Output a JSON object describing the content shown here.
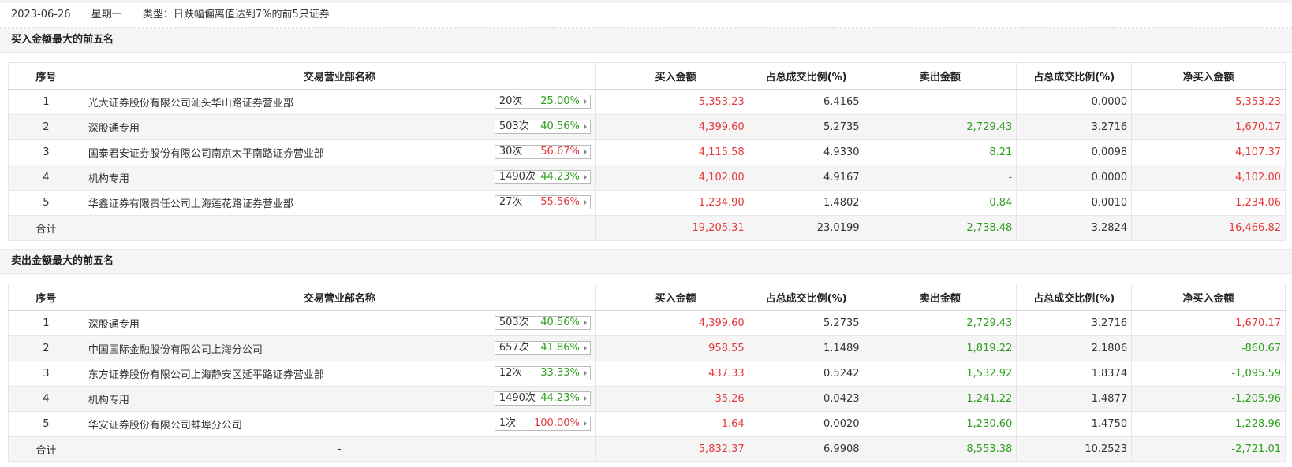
{
  "header": {
    "date": "2023-06-26",
    "weekday": "星期一",
    "type_text": "类型：日跌幅偏离值达到7%的前5只证券"
  },
  "colors": {
    "red": "#e4393c",
    "green": "#2f9e1f"
  },
  "columns": [
    "序号",
    "交易营业部名称",
    "买入金额",
    "占总成交比例(%)",
    "卖出金额",
    "占总成交比例(%)",
    "净买入金额"
  ],
  "buy_section": {
    "title": "买入金额最大的前五名",
    "rows": [
      {
        "idx": "1",
        "name": "光大证券股份有限公司汕头华山路证券营业部",
        "count": "20次",
        "pct": "25.00%",
        "pct_color": "green",
        "buy": "5,353.23",
        "buy_ratio": "6.4165",
        "sell": "-",
        "sell_ratio": "0.0000",
        "net": "5,353.23",
        "net_color": "red"
      },
      {
        "idx": "2",
        "name": "深股通专用",
        "count": "503次",
        "pct": "40.56%",
        "pct_color": "green",
        "buy": "4,399.60",
        "buy_ratio": "5.2735",
        "sell": "2,729.43",
        "sell_ratio": "3.2716",
        "net": "1,670.17",
        "net_color": "red"
      },
      {
        "idx": "3",
        "name": "国泰君安证券股份有限公司南京太平南路证券营业部",
        "count": "30次",
        "pct": "56.67%",
        "pct_color": "red",
        "buy": "4,115.58",
        "buy_ratio": "4.9330",
        "sell": "8.21",
        "sell_ratio": "0.0098",
        "net": "4,107.37",
        "net_color": "red"
      },
      {
        "idx": "4",
        "name": "机构专用",
        "count": "1490次",
        "pct": "44.23%",
        "pct_color": "green",
        "buy": "4,102.00",
        "buy_ratio": "4.9167",
        "sell": "-",
        "sell_ratio": "0.0000",
        "net": "4,102.00",
        "net_color": "red"
      },
      {
        "idx": "5",
        "name": "华鑫证券有限责任公司上海莲花路证券营业部",
        "count": "27次",
        "pct": "55.56%",
        "pct_color": "red",
        "buy": "1,234.90",
        "buy_ratio": "1.4802",
        "sell": "0.84",
        "sell_ratio": "0.0010",
        "net": "1,234.06",
        "net_color": "red"
      }
    ],
    "total": {
      "label": "合计",
      "name": "-",
      "buy": "19,205.31",
      "buy_ratio": "23.0199",
      "sell": "2,738.48",
      "sell_ratio": "3.2824",
      "net": "16,466.82",
      "net_color": "red"
    }
  },
  "sell_section": {
    "title": "卖出金额最大的前五名",
    "rows": [
      {
        "idx": "1",
        "name": "深股通专用",
        "count": "503次",
        "pct": "40.56%",
        "pct_color": "green",
        "buy": "4,399.60",
        "buy_ratio": "5.2735",
        "sell": "2,729.43",
        "sell_ratio": "3.2716",
        "net": "1,670.17",
        "net_color": "red"
      },
      {
        "idx": "2",
        "name": "中国国际金融股份有限公司上海分公司",
        "count": "657次",
        "pct": "41.86%",
        "pct_color": "green",
        "buy": "958.55",
        "buy_ratio": "1.1489",
        "sell": "1,819.22",
        "sell_ratio": "2.1806",
        "net": "-860.67",
        "net_color": "green"
      },
      {
        "idx": "3",
        "name": "东方证券股份有限公司上海静安区延平路证券营业部",
        "count": "12次",
        "pct": "33.33%",
        "pct_color": "green",
        "buy": "437.33",
        "buy_ratio": "0.5242",
        "sell": "1,532.92",
        "sell_ratio": "1.8374",
        "net": "-1,095.59",
        "net_color": "green"
      },
      {
        "idx": "4",
        "name": "机构专用",
        "count": "1490次",
        "pct": "44.23%",
        "pct_color": "green",
        "buy": "35.26",
        "buy_ratio": "0.0423",
        "sell": "1,241.22",
        "sell_ratio": "1.4877",
        "net": "-1,205.96",
        "net_color": "green"
      },
      {
        "idx": "5",
        "name": "华安证券股份有限公司蚌埠分公司",
        "count": "1次",
        "pct": "100.00%",
        "pct_color": "red",
        "buy": "1.64",
        "buy_ratio": "0.0020",
        "sell": "1,230.60",
        "sell_ratio": "1.4750",
        "net": "-1,228.96",
        "net_color": "green"
      }
    ],
    "total": {
      "label": "合计",
      "name": "-",
      "buy": "5,832.37",
      "buy_ratio": "6.9908",
      "sell": "8,553.38",
      "sell_ratio": "10.2523",
      "net": "-2,721.01",
      "net_color": "green"
    }
  }
}
